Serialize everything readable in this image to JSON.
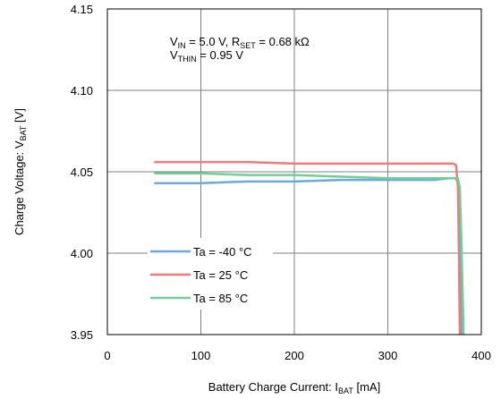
{
  "chart_data": {
    "type": "line",
    "xlabel": {
      "main": "Battery Charge Current: I",
      "sub": "BAT",
      "unit": " [mA]"
    },
    "ylabel": {
      "main": "Charge Voltage: V",
      "sub": "BAT",
      "unit": " [V]"
    },
    "xlim": [
      0,
      400
    ],
    "ylim": [
      3.95,
      4.15
    ],
    "x_ticks": [
      0,
      100,
      200,
      300,
      400
    ],
    "x_tick_labels": [
      "0",
      "100",
      "200",
      "300",
      "400"
    ],
    "y_ticks": [
      3.95,
      4.0,
      4.05,
      4.1,
      4.15
    ],
    "y_tick_labels": [
      "3.95",
      "4.00",
      "4.05",
      "4.10",
      "4.15"
    ],
    "grid": true,
    "annotation": {
      "line1": {
        "a": "V",
        "a_sub": "IN",
        "b": " = 5.0 V, R",
        "b_sub": "SET",
        "c": " = 0.68 kΩ"
      },
      "line2": {
        "a": "V",
        "a_sub": "THIN",
        "b": " = 0.95 V"
      }
    },
    "legend_position": "bottom-left",
    "series": [
      {
        "name": "Ta =  -40 °C",
        "color": "#6fa8dc",
        "points": [
          [
            50,
            4.043
          ],
          [
            100,
            4.043
          ],
          [
            150,
            4.044
          ],
          [
            200,
            4.044
          ],
          [
            250,
            4.045
          ],
          [
            300,
            4.045
          ],
          [
            350,
            4.045
          ],
          [
            365,
            4.046
          ],
          [
            372,
            4.046
          ],
          [
            375,
            4.044
          ],
          [
            377,
            4.0
          ],
          [
            379,
            3.95
          ]
        ]
      },
      {
        "name": "Ta =  25 °C",
        "color": "#ee7b7b",
        "points": [
          [
            50,
            4.056
          ],
          [
            100,
            4.056
          ],
          [
            150,
            4.056
          ],
          [
            200,
            4.055
          ],
          [
            250,
            4.055
          ],
          [
            300,
            4.055
          ],
          [
            350,
            4.055
          ],
          [
            370,
            4.055
          ],
          [
            373,
            4.054
          ],
          [
            375,
            4.04
          ],
          [
            376,
            4.0
          ],
          [
            377,
            3.95
          ]
        ]
      },
      {
        "name": "Ta =  85 °C",
        "color": "#6fcf97",
        "points": [
          [
            50,
            4.049
          ],
          [
            100,
            4.049
          ],
          [
            150,
            4.048
          ],
          [
            200,
            4.048
          ],
          [
            250,
            4.047
          ],
          [
            300,
            4.046
          ],
          [
            350,
            4.046
          ],
          [
            370,
            4.046
          ],
          [
            375,
            4.046
          ],
          [
            377,
            4.04
          ],
          [
            379,
            4.0
          ],
          [
            381,
            3.95
          ]
        ]
      }
    ]
  }
}
